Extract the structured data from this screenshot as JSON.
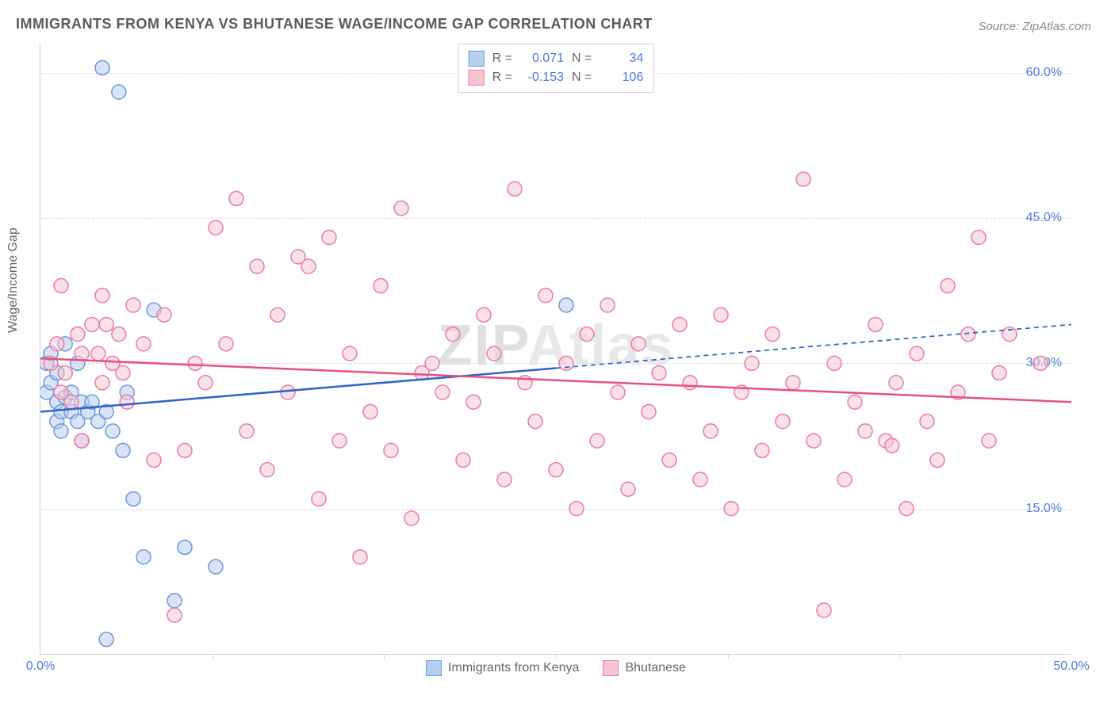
{
  "title": "IMMIGRANTS FROM KENYA VS BHUTANESE WAGE/INCOME GAP CORRELATION CHART",
  "source": "Source: ZipAtlas.com",
  "ylabel": "Wage/Income Gap",
  "watermark": "ZIPAtlas",
  "chart": {
    "type": "scatter",
    "xlim": [
      0,
      50
    ],
    "ylim": [
      0,
      63
    ],
    "yticks": [
      15,
      30,
      45,
      60
    ],
    "ytick_labels": [
      "15.0%",
      "30.0%",
      "45.0%",
      "60.0%"
    ],
    "xticks": [
      0,
      50
    ],
    "xtick_labels": [
      "0.0%",
      "50.0%"
    ],
    "xtick_marks": [
      8.33,
      16.67,
      25.0,
      33.33,
      41.67
    ],
    "grid_color": "#d8d8d8",
    "background_color": "#ffffff",
    "font_color_axis": "#4a7ae2",
    "series": [
      {
        "name": "Immigrants from Kenya",
        "color_fill": "#b9cff0",
        "color_stroke": "#6a99db",
        "marker_radius": 9,
        "fill_opacity": 0.55,
        "R": "0.071",
        "N": "34",
        "trend": {
          "x1": 0,
          "y1": 25,
          "x2": 25,
          "y2": 29.5,
          "x_dash_to": 50,
          "y_dash_to": 34,
          "color": "#2e63c9",
          "width": 2.5
        },
        "points": [
          [
            0.3,
            27
          ],
          [
            0.3,
            30
          ],
          [
            0.5,
            31
          ],
          [
            0.5,
            28
          ],
          [
            0.8,
            26
          ],
          [
            0.8,
            29
          ],
          [
            0.8,
            24
          ],
          [
            1.0,
            25
          ],
          [
            1.0,
            23
          ],
          [
            1.2,
            26.5
          ],
          [
            1.2,
            32
          ],
          [
            1.5,
            25
          ],
          [
            1.5,
            27
          ],
          [
            1.8,
            24
          ],
          [
            1.8,
            30
          ],
          [
            2.0,
            22
          ],
          [
            2.0,
            26
          ],
          [
            2.3,
            25
          ],
          [
            2.5,
            26
          ],
          [
            2.8,
            24
          ],
          [
            3.0,
            60.5
          ],
          [
            3.2,
            25
          ],
          [
            3.2,
            1.5
          ],
          [
            3.5,
            23
          ],
          [
            3.8,
            58.0
          ],
          [
            4.0,
            21
          ],
          [
            4.2,
            27
          ],
          [
            4.5,
            16
          ],
          [
            5.0,
            10
          ],
          [
            5.5,
            35.5
          ],
          [
            6.5,
            5.5
          ],
          [
            7.0,
            11
          ],
          [
            8.5,
            9
          ],
          [
            25.5,
            36.0
          ]
        ]
      },
      {
        "name": "Bhutanese",
        "color_fill": "#f6c6d4",
        "color_stroke": "#e77ea0",
        "marker_radius": 9,
        "fill_opacity": 0.55,
        "R": "-0.153",
        "N": "106",
        "trend": {
          "x1": 0,
          "y1": 30.5,
          "x2": 50,
          "y2": 26.0,
          "color": "#e6517e",
          "width": 2.5
        },
        "points": [
          [
            0.5,
            30
          ],
          [
            0.8,
            32
          ],
          [
            1.0,
            27
          ],
          [
            1.0,
            38
          ],
          [
            1.2,
            29
          ],
          [
            1.5,
            26
          ],
          [
            1.8,
            33
          ],
          [
            2.0,
            31
          ],
          [
            2.0,
            22
          ],
          [
            2.5,
            34
          ],
          [
            2.8,
            31
          ],
          [
            3.0,
            37
          ],
          [
            3.0,
            28
          ],
          [
            3.2,
            34
          ],
          [
            3.5,
            30
          ],
          [
            3.8,
            33
          ],
          [
            4.0,
            29
          ],
          [
            4.2,
            26
          ],
          [
            4.5,
            36
          ],
          [
            5.0,
            32
          ],
          [
            5.5,
            20
          ],
          [
            6.0,
            35
          ],
          [
            6.5,
            4
          ],
          [
            7.0,
            21
          ],
          [
            7.5,
            30
          ],
          [
            8.0,
            28
          ],
          [
            8.5,
            44
          ],
          [
            9.0,
            32
          ],
          [
            9.5,
            47
          ],
          [
            10.0,
            23
          ],
          [
            10.5,
            40
          ],
          [
            11.0,
            19
          ],
          [
            11.5,
            35
          ],
          [
            12.0,
            27
          ],
          [
            12.5,
            41
          ],
          [
            13.0,
            40
          ],
          [
            13.5,
            16
          ],
          [
            14.0,
            43
          ],
          [
            14.5,
            22
          ],
          [
            15.0,
            31
          ],
          [
            15.5,
            10
          ],
          [
            16.0,
            25
          ],
          [
            16.5,
            38
          ],
          [
            17.0,
            21
          ],
          [
            17.5,
            46
          ],
          [
            18.0,
            14
          ],
          [
            18.5,
            29
          ],
          [
            19.0,
            30
          ],
          [
            19.5,
            27
          ],
          [
            20.0,
            33
          ],
          [
            20.5,
            20
          ],
          [
            21.0,
            26
          ],
          [
            21.5,
            35
          ],
          [
            22.0,
            31
          ],
          [
            22.5,
            18
          ],
          [
            23.0,
            48
          ],
          [
            23.5,
            28
          ],
          [
            24.0,
            24
          ],
          [
            24.5,
            37
          ],
          [
            25.0,
            19
          ],
          [
            25.5,
            30
          ],
          [
            26.0,
            15
          ],
          [
            26.5,
            33
          ],
          [
            27.0,
            22
          ],
          [
            27.5,
            36
          ],
          [
            28.0,
            27
          ],
          [
            28.5,
            17
          ],
          [
            29.0,
            32
          ],
          [
            29.5,
            25
          ],
          [
            30.0,
            29
          ],
          [
            30.5,
            20
          ],
          [
            31.0,
            34
          ],
          [
            31.5,
            28
          ],
          [
            32.0,
            18
          ],
          [
            32.5,
            23
          ],
          [
            33.0,
            35
          ],
          [
            33.5,
            15
          ],
          [
            34.0,
            27
          ],
          [
            34.5,
            30
          ],
          [
            35.0,
            21
          ],
          [
            35.5,
            33
          ],
          [
            36.0,
            24
          ],
          [
            36.5,
            28
          ],
          [
            37.0,
            49
          ],
          [
            37.5,
            22
          ],
          [
            38.0,
            4.5
          ],
          [
            38.5,
            30
          ],
          [
            39.0,
            18
          ],
          [
            39.5,
            26
          ],
          [
            40.0,
            23
          ],
          [
            40.5,
            34
          ],
          [
            41.0,
            22
          ],
          [
            41.3,
            21.5
          ],
          [
            41.5,
            28
          ],
          [
            42.0,
            15
          ],
          [
            42.5,
            31
          ],
          [
            43.0,
            24
          ],
          [
            43.5,
            20
          ],
          [
            44.0,
            38
          ],
          [
            44.5,
            27
          ],
          [
            45.0,
            33
          ],
          [
            45.5,
            43
          ],
          [
            46.0,
            22
          ],
          [
            46.5,
            29
          ],
          [
            47.0,
            33
          ],
          [
            48.5,
            30
          ]
        ]
      }
    ]
  },
  "legend_top": {
    "rows": [
      {
        "swatch_fill": "#b9cff0",
        "swatch_stroke": "#6a99db",
        "r_label": "R =",
        "r": "0.071",
        "n_label": "N =",
        "n": "34"
      },
      {
        "swatch_fill": "#f6c6d4",
        "swatch_stroke": "#e77ea0",
        "r_label": "R =",
        "r": "-0.153",
        "n_label": "N =",
        "n": "106"
      }
    ]
  },
  "legend_bottom": {
    "items": [
      {
        "swatch_fill": "#b9cff0",
        "swatch_stroke": "#6a99db",
        "label": "Immigrants from Kenya"
      },
      {
        "swatch_fill": "#f6c6d4",
        "swatch_stroke": "#e77ea0",
        "label": "Bhutanese"
      }
    ]
  }
}
